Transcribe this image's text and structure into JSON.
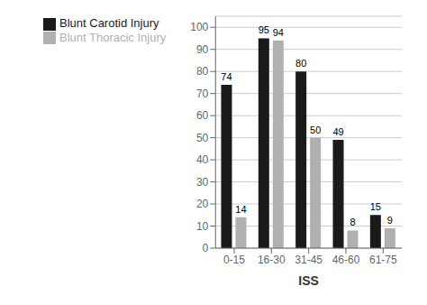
{
  "chart_data": {
    "type": "bar",
    "categories": [
      "0-15",
      "16-30",
      "31-45",
      "46-60",
      "61-75"
    ],
    "series": [
      {
        "name": "Blunt Carotid Injury",
        "color": "#1a1a1a",
        "values": [
          74,
          95,
          80,
          49,
          15
        ]
      },
      {
        "name": "Blunt Thoracic Injury",
        "color": "#b0b0b0",
        "values": [
          14,
          94,
          50,
          8,
          9
        ]
      }
    ],
    "xlabel": "ISS",
    "ylim": [
      0,
      105
    ],
    "yticks": [
      0,
      10,
      20,
      30,
      40,
      50,
      60,
      70,
      80,
      90,
      100
    ],
    "grid": true,
    "legend": "upper left",
    "data_labels": true
  }
}
